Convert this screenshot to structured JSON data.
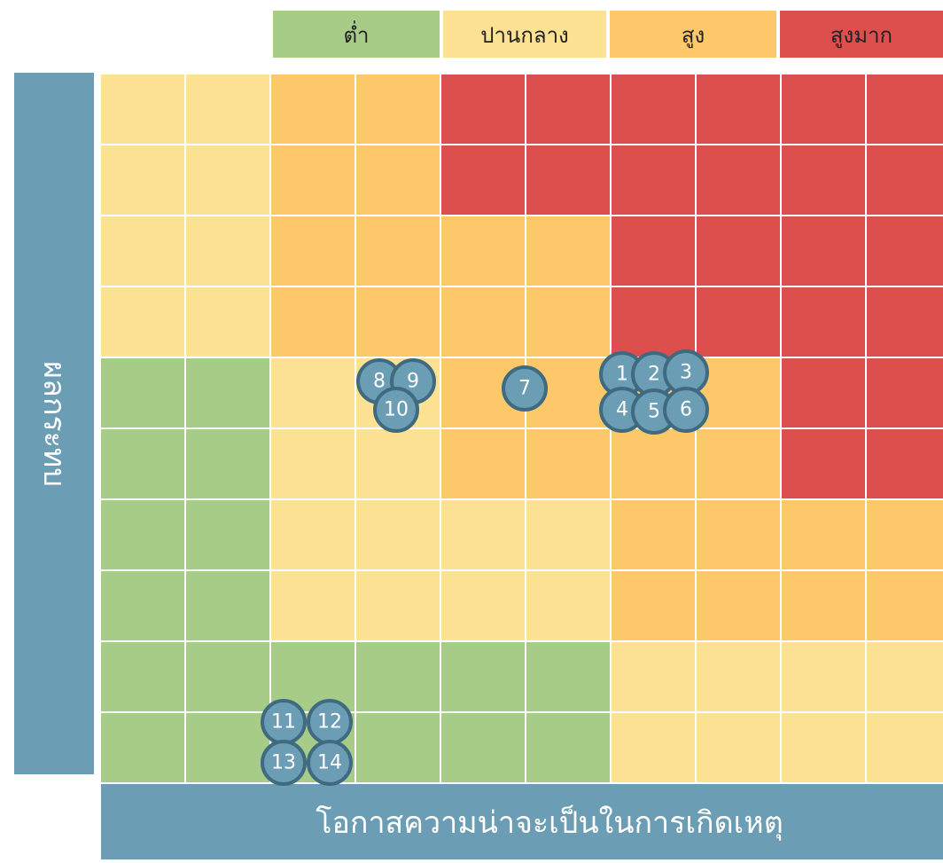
{
  "legend": [
    "ต่ำ",
    "ปานกลาง",
    "สูง",
    "สูงมาก"
  ],
  "y_axis_label": "ผลกระทบ",
  "x_axis_label": "โอกาสความน่าจะเป็นในการเกิดเหตุ",
  "markers": [
    "1",
    "2",
    "3",
    "4",
    "5",
    "6",
    "7",
    "8",
    "9",
    "10",
    "11",
    "12",
    "13",
    "14"
  ]
}
